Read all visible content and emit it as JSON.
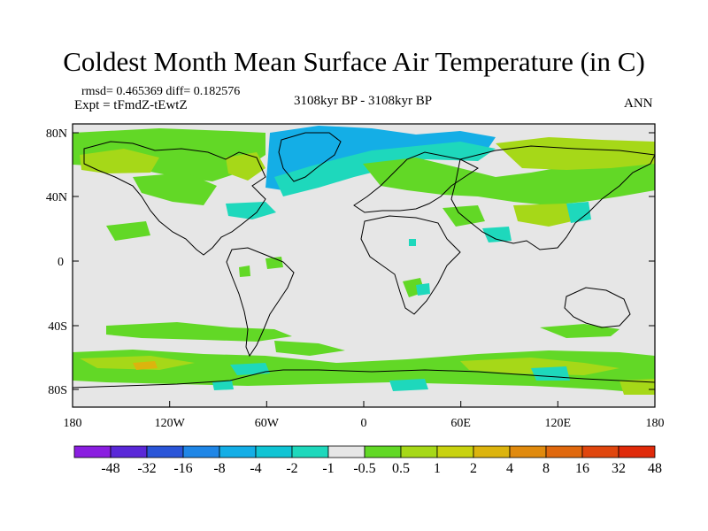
{
  "header": {
    "title": "Coldest Month Mean Surface Air Temperature (in C)",
    "stats": "rmsd= 0.465369 diff= 0.182576",
    "experiment": "Expt = tFmdZ-tEwtZ",
    "period": "3108kyr BP - 3108kyr BP",
    "season": "ANN"
  },
  "map": {
    "lat_ticks": [
      "80N",
      "40N",
      "0",
      "40S",
      "80S"
    ],
    "lon_ticks": [
      "180",
      "120W",
      "60W",
      "0",
      "60E",
      "120E",
      "180"
    ]
  },
  "colorbar": {
    "labels": [
      "-48",
      "-32",
      "-16",
      "-8",
      "-4",
      "-2",
      "-1",
      "-0.5",
      "0.5",
      "1",
      "2",
      "4",
      "8",
      "16",
      "32",
      "48"
    ],
    "colors": [
      "#8a1ee0",
      "#5a28d8",
      "#2a55d8",
      "#1f86e6",
      "#14aee6",
      "#10c4d4",
      "#1ed8bc",
      "#e6e6e6",
      "#62d826",
      "#a6d818",
      "#c8d210",
      "#dcb40e",
      "#e08a0e",
      "#e0680e",
      "#e0460e",
      "#e02a0a"
    ]
  }
}
